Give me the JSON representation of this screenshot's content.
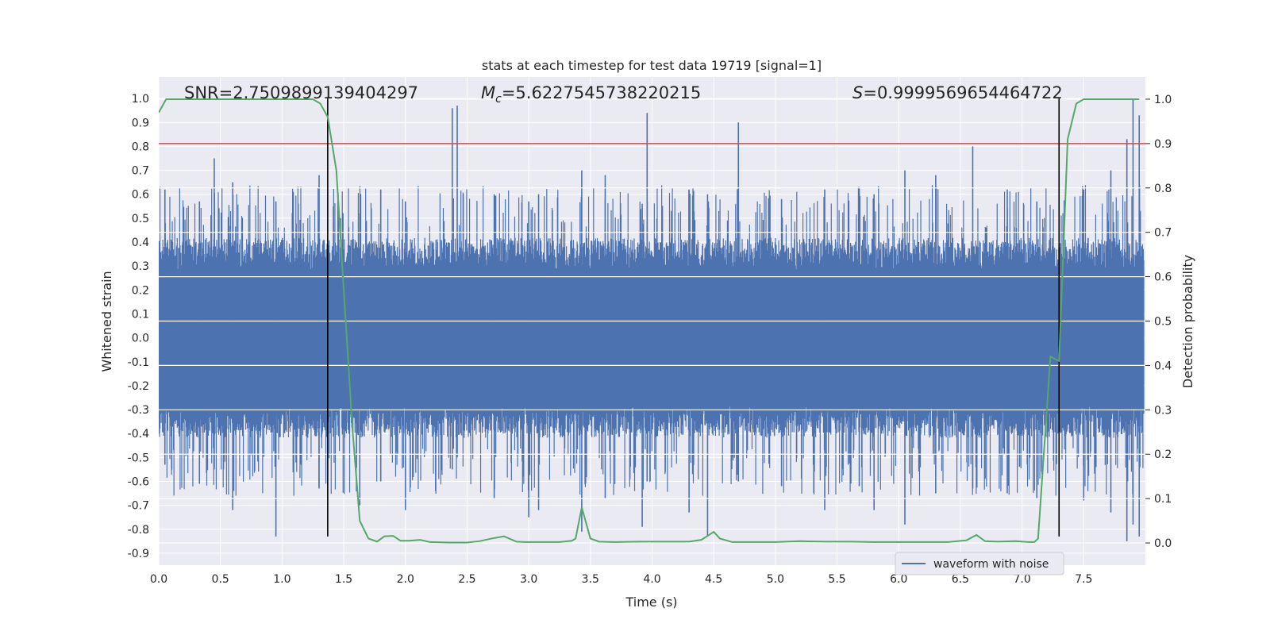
{
  "chart_data": {
    "type": "line",
    "title": "stats at each timestep for test data 19719 [signal=1]",
    "xlabel": "Time (s)",
    "ylabel_left": "Whitened strain",
    "ylabel_right": "Detection probability",
    "xlim": [
      0.0,
      8.0
    ],
    "ylim_left": [
      -0.95,
      1.09
    ],
    "ylim_right": [
      -0.05,
      1.05
    ],
    "x_ticks": [
      0.0,
      0.5,
      1.0,
      1.5,
      2.0,
      2.5,
      3.0,
      3.5,
      4.0,
      4.5,
      5.0,
      5.5,
      6.0,
      6.5,
      7.0,
      7.5
    ],
    "x_tick_labels": [
      "0.0",
      "0.5",
      "1.0",
      "1.5",
      "2.0",
      "2.5",
      "3.0",
      "3.5",
      "4.0",
      "4.5",
      "5.0",
      "5.5",
      "6.0",
      "6.5",
      "7.0",
      "7.5"
    ],
    "y_left_ticks": [
      1.0,
      0.9,
      0.8,
      0.7,
      0.6,
      0.5,
      0.4,
      0.3,
      0.2,
      0.1,
      0.0,
      -0.1,
      -0.2,
      -0.3,
      -0.4,
      -0.5,
      -0.6,
      -0.7,
      -0.8,
      -0.9
    ],
    "y_left_tick_labels": [
      "1.0",
      "0.9",
      "0.8",
      "0.7",
      "0.6",
      "0.5",
      "0.4",
      "0.3",
      "0.2",
      "0.1",
      "0.0",
      "-0.1",
      "-0.2",
      "-0.3",
      "-0.4",
      "-0.5",
      "-0.6",
      "-0.7",
      "-0.8",
      "-0.9"
    ],
    "y_right_ticks": [
      1.0,
      0.9,
      0.8,
      0.7,
      0.6,
      0.5,
      0.4,
      0.3,
      0.2,
      0.1,
      0.0
    ],
    "y_right_tick_labels": [
      "1.0",
      "0.9",
      "0.8",
      "0.7",
      "0.6",
      "0.5",
      "0.4",
      "0.3",
      "0.2",
      "0.1",
      "0.0"
    ],
    "grid": true,
    "annotations": {
      "snr": "SNR=2.7509899139404297",
      "mc_symbol": "M",
      "mc_sub": "c",
      "mc_value": "=5.6227545738220215",
      "s_symbol": "S",
      "s_value": "=0.9999569654464722"
    },
    "threshold_probability": 0.9,
    "vertical_lines_x": [
      1.37,
      7.3
    ],
    "vline_ymin_left": -0.83,
    "vline_ymax_left": 1.0,
    "waveform": {
      "name": "waveform with noise",
      "envelope_typical": 0.38,
      "spikes": [
        [
          0.05,
          0.62,
          -0.53
        ],
        [
          0.33,
          0.57,
          -0.61
        ],
        [
          0.45,
          0.75,
          -0.55
        ],
        [
          0.6,
          0.65,
          -0.72
        ],
        [
          0.95,
          0.57,
          -0.83
        ],
        [
          1.3,
          0.68,
          -0.63
        ],
        [
          1.63,
          0.52,
          -0.7
        ],
        [
          1.8,
          0.62,
          -0.6
        ],
        [
          2.0,
          0.57,
          -0.72
        ],
        [
          2.38,
          0.96,
          -0.55
        ],
        [
          2.42,
          0.97,
          -0.5
        ],
        [
          2.72,
          0.6,
          -0.67
        ],
        [
          3.0,
          0.57,
          -0.75
        ],
        [
          3.08,
          0.6,
          -0.72
        ],
        [
          3.43,
          0.7,
          -0.81
        ],
        [
          3.62,
          0.68,
          -0.67
        ],
        [
          3.92,
          0.56,
          -0.79
        ],
        [
          3.96,
          0.94,
          -0.6
        ],
        [
          4.3,
          0.62,
          -0.73
        ],
        [
          4.45,
          0.6,
          -0.83
        ],
        [
          4.7,
          0.9,
          -0.6
        ],
        [
          5.05,
          0.58,
          -0.62
        ],
        [
          5.4,
          0.62,
          -0.72
        ],
        [
          5.68,
          0.63,
          -0.62
        ],
        [
          5.8,
          0.6,
          -0.72
        ],
        [
          6.05,
          0.7,
          -0.78
        ],
        [
          6.3,
          0.68,
          -0.65
        ],
        [
          6.6,
          0.8,
          -0.63
        ],
        [
          6.88,
          0.62,
          -0.65
        ],
        [
          7.12,
          0.57,
          -0.67
        ],
        [
          7.5,
          0.62,
          -0.68
        ],
        [
          7.72,
          0.7,
          -0.73
        ],
        [
          7.85,
          0.83,
          -0.85
        ],
        [
          7.9,
          1.0,
          -0.78
        ],
        [
          7.95,
          0.93,
          -0.83
        ]
      ]
    },
    "probability": {
      "x": [
        0.0,
        0.06,
        0.2,
        0.5,
        1.0,
        1.25,
        1.31,
        1.37,
        1.44,
        1.5,
        1.57,
        1.63,
        1.7,
        1.77,
        1.83,
        1.9,
        1.96,
        2.03,
        2.12,
        2.2,
        2.35,
        2.5,
        2.6,
        2.7,
        2.8,
        2.9,
        2.97,
        3.1,
        3.25,
        3.35,
        3.38,
        3.43,
        3.5,
        3.57,
        3.7,
        3.9,
        4.1,
        4.3,
        4.4,
        4.5,
        4.55,
        4.65,
        4.8,
        5.0,
        5.2,
        5.4,
        5.6,
        5.8,
        6.0,
        6.2,
        6.4,
        6.55,
        6.63,
        6.7,
        6.8,
        6.95,
        7.05,
        7.1,
        7.13,
        7.23,
        7.3,
        7.37,
        7.44,
        7.5,
        7.65,
        7.95
      ],
      "values": [
        0.97,
        1.0,
        1.0,
        1.0,
        1.0,
        1.0,
        0.99,
        0.96,
        0.84,
        0.57,
        0.26,
        0.05,
        0.01,
        0.003,
        0.015,
        0.016,
        0.005,
        0.005,
        0.007,
        0.002,
        0.001,
        0.001,
        0.004,
        0.01,
        0.015,
        0.003,
        0.002,
        0.002,
        0.002,
        0.005,
        0.01,
        0.08,
        0.01,
        0.003,
        0.002,
        0.003,
        0.003,
        0.003,
        0.007,
        0.025,
        0.01,
        0.002,
        0.002,
        0.002,
        0.004,
        0.003,
        0.003,
        0.002,
        0.002,
        0.002,
        0.002,
        0.006,
        0.018,
        0.004,
        0.003,
        0.004,
        0.002,
        0.002,
        0.01,
        0.42,
        0.41,
        0.91,
        0.99,
        1.0,
        1.0,
        1.0
      ]
    },
    "colors": {
      "background": "#EAEAF2",
      "grid": "#FFFFFF",
      "waveform": "#4C72B0",
      "probability": "#55A868",
      "threshold": "#C44E52",
      "vline": "#000000"
    },
    "legend": {
      "placement": "lower-right",
      "entries": [
        "waveform with noise"
      ]
    }
  }
}
